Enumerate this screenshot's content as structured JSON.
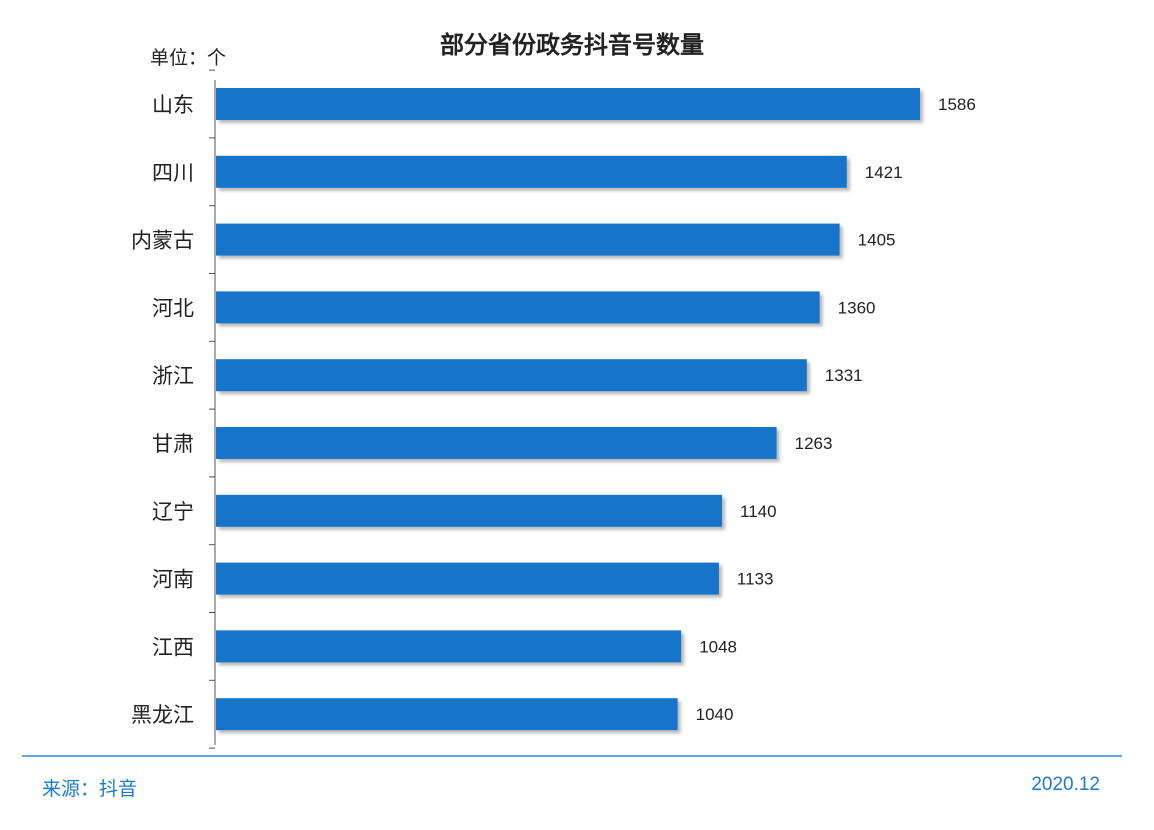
{
  "chart_data": {
    "type": "bar",
    "orientation": "horizontal",
    "title": "部分省份政务抖音号数量",
    "unit_label": "单位：个",
    "categories": [
      "山东",
      "四川",
      "内蒙古",
      "河北",
      "浙江",
      "甘肃",
      "辽宁",
      "河南",
      "江西",
      "黑龙江"
    ],
    "values": [
      1586,
      1421,
      1405,
      1360,
      1331,
      1263,
      1140,
      1133,
      1048,
      1040
    ],
    "bar_color": "#1574c9",
    "legend": "none",
    "grid": false
  },
  "footer": {
    "source": "来源：抖音",
    "date": "2020.12"
  }
}
